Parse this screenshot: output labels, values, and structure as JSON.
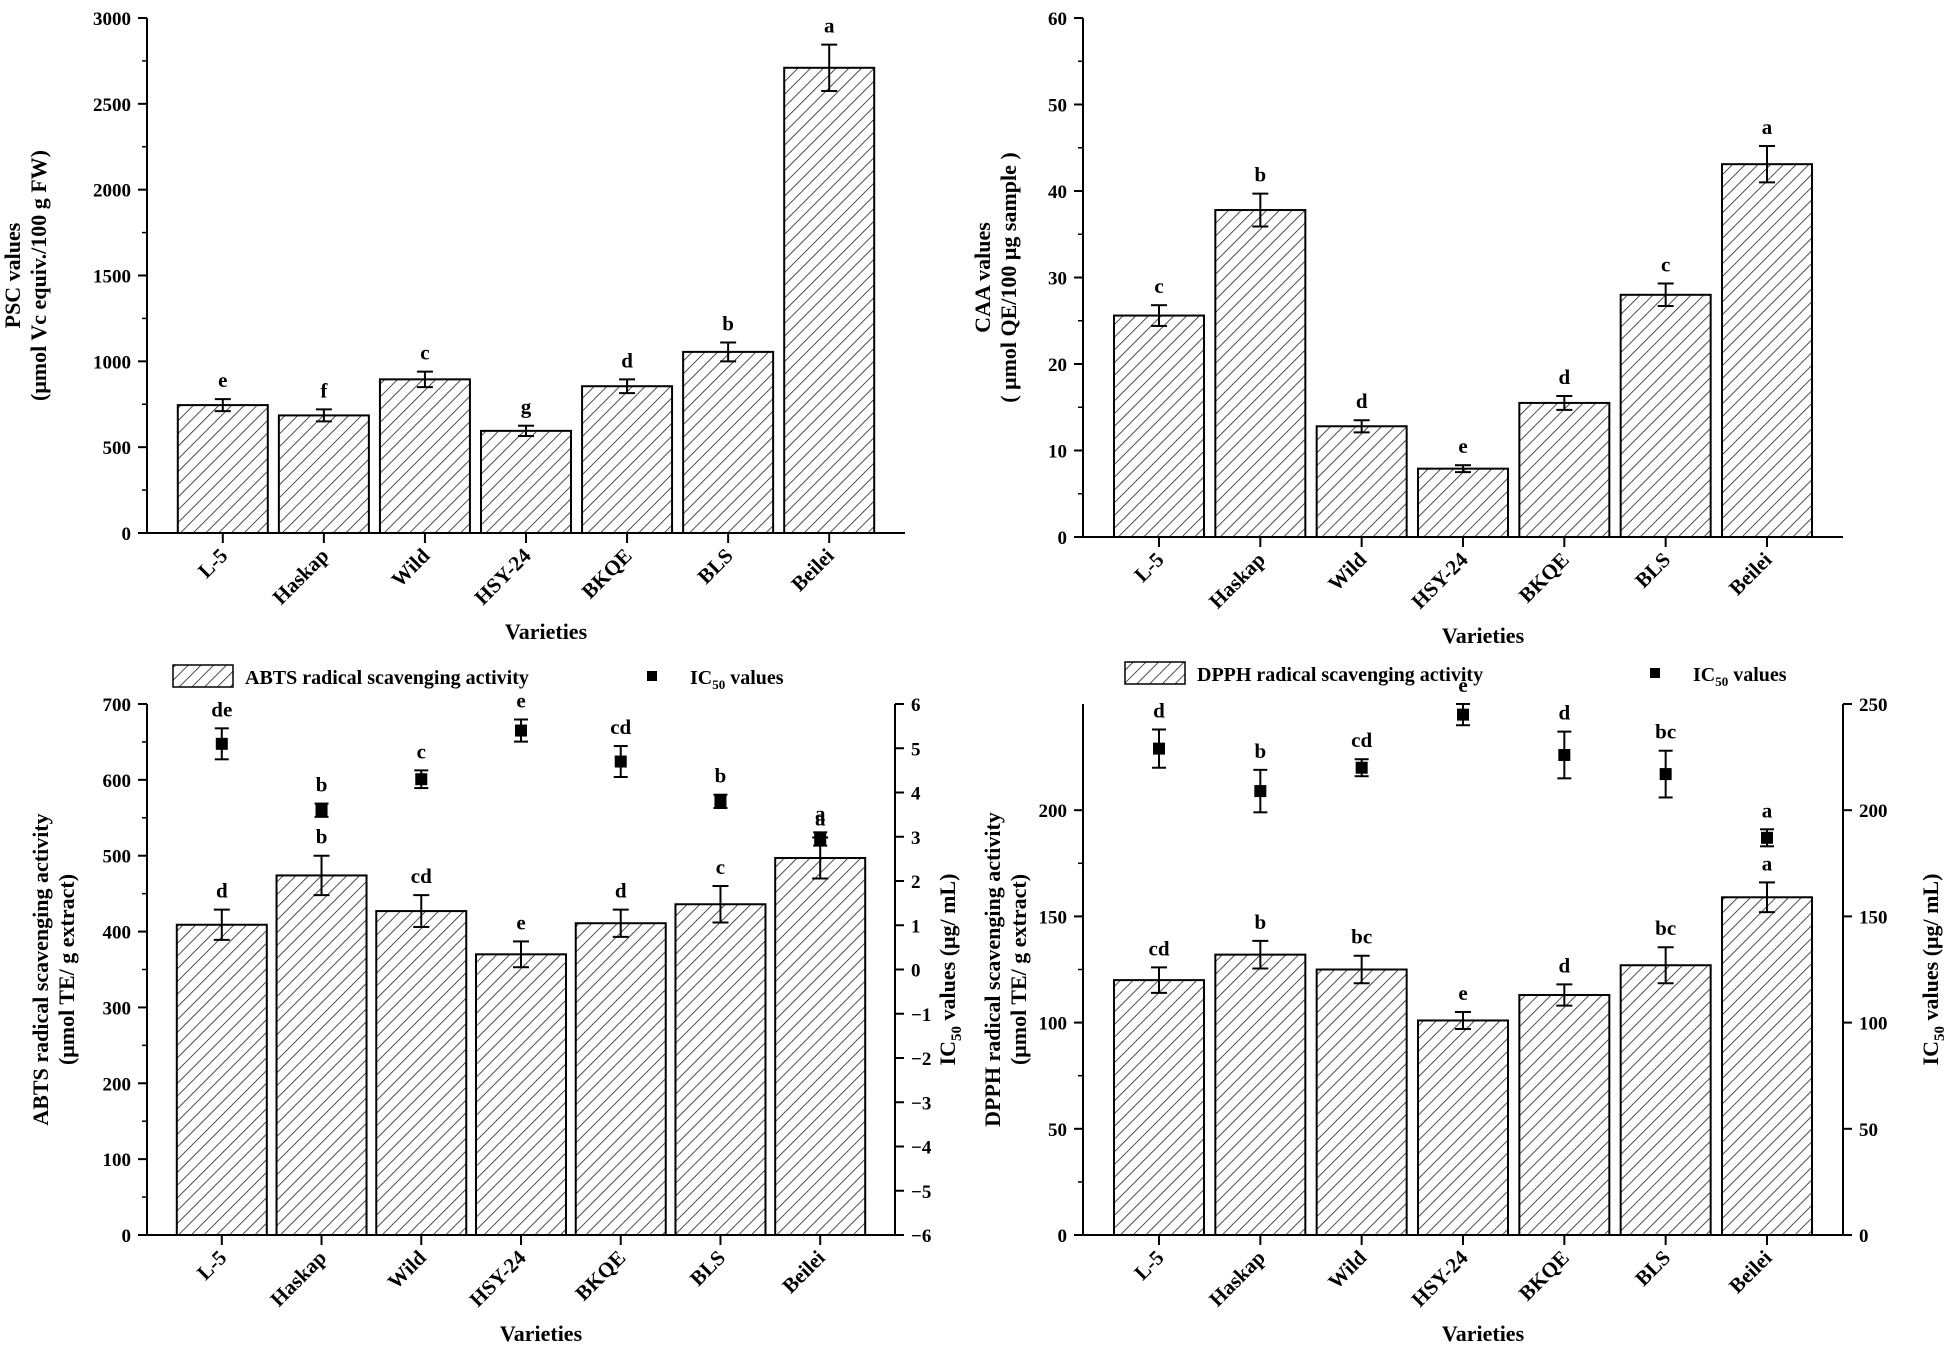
{
  "chart_data": [
    {
      "type": "bar",
      "id": "psc",
      "categories": [
        "L-5",
        "Haskap",
        "Wild",
        "HSY-24",
        "BKQE",
        "BLS",
        "Beilei"
      ],
      "values": [
        745,
        685,
        895,
        595,
        855,
        1055,
        2710
      ],
      "errors": [
        35,
        35,
        45,
        30,
        40,
        55,
        135
      ],
      "letters": [
        "e",
        "f",
        "c",
        "g",
        "d",
        "b",
        "a"
      ],
      "xlabel": "Varieties",
      "ylabel": [
        "PSC values",
        "(μmol Vc equiv./100 g FW)"
      ],
      "ylim": [
        0,
        3000
      ],
      "yticks": [
        0,
        500,
        1000,
        1500,
        2000,
        2500,
        3000
      ]
    },
    {
      "type": "bar",
      "id": "caa",
      "categories": [
        "L-5",
        "Haskap",
        "Wild",
        "HSY-24",
        "BKQE",
        "BLS",
        "Beilei"
      ],
      "values": [
        25.6,
        37.8,
        12.8,
        7.9,
        15.5,
        28.0,
        43.1
      ],
      "errors": [
        1.2,
        1.9,
        0.7,
        0.4,
        0.8,
        1.3,
        2.1
      ],
      "letters": [
        "c",
        "b",
        "d",
        "e",
        "d",
        "c",
        "a"
      ],
      "xlabel": "Varieties",
      "ylabel": [
        "CAA values",
        "( μmol QE/100 μg sample )"
      ],
      "ylim": [
        0,
        60
      ],
      "yticks": [
        0,
        10,
        20,
        30,
        40,
        50,
        60
      ]
    },
    {
      "type": "bar+scatter",
      "id": "abts",
      "categories": [
        "L-5",
        "Haskap",
        "Wild",
        "HSY-24",
        "BKQE",
        "BLS",
        "Beilei"
      ],
      "values": [
        409,
        474,
        427,
        370,
        411,
        436,
        497
      ],
      "errors": [
        20,
        26,
        21,
        17,
        18,
        24,
        27
      ],
      "letters": [
        "d",
        "b",
        "cd",
        "e",
        "d",
        "c",
        "a"
      ],
      "ic50": [
        5.1,
        3.6,
        4.3,
        5.4,
        4.7,
        3.8,
        2.95
      ],
      "ic50_errors": [
        0.35,
        0.15,
        0.2,
        0.25,
        0.35,
        0.15,
        0.15
      ],
      "ic50_letters": [
        "de",
        "b",
        "c",
        "e",
        "cd",
        "b",
        "a"
      ],
      "xlabel": "Varieties",
      "ylabel": [
        "ABTS radical scavenging activity",
        "(μmol TE/ g extract)"
      ],
      "ylim": [
        0,
        700
      ],
      "yticks": [
        0,
        100,
        200,
        300,
        400,
        500,
        600,
        700
      ],
      "y2label": "IC50 values (μg/ mL)",
      "y2lim": [
        -6,
        6
      ],
      "y2ticks": [
        -6,
        -5,
        -4,
        -3,
        -2,
        -1,
        0,
        1,
        2,
        3,
        4,
        5,
        6
      ],
      "legend": [
        "ABTS radical scavenging activity",
        "IC50 values"
      ]
    },
    {
      "type": "bar+scatter",
      "id": "dpph",
      "categories": [
        "L-5",
        "Haskap",
        "Wild",
        "HSY-24",
        "BKQE",
        "BLS",
        "Beilei"
      ],
      "values": [
        120,
        132,
        125,
        101,
        113,
        127,
        159
      ],
      "errors": [
        6,
        6.5,
        6.5,
        4,
        5,
        8.5,
        7
      ],
      "letters": [
        "cd",
        "b",
        "bc",
        "e",
        "d",
        "bc",
        "a"
      ],
      "ic50": [
        229,
        209,
        220,
        245,
        226,
        217,
        187
      ],
      "ic50_errors": [
        9,
        10,
        4,
        5,
        11,
        11,
        4
      ],
      "ic50_letters": [
        "d",
        "b",
        "cd",
        "e",
        "d",
        "bc",
        "a"
      ],
      "xlabel": "Varieties",
      "ylabel": [
        "DPPH radical scavenging activity",
        "(μmol TE/ g extract)"
      ],
      "ylim": [
        0,
        250
      ],
      "yticks": [
        0,
        50,
        100,
        150,
        200
      ],
      "y2label": "IC50 values (μg/ mL)",
      "y2lim": [
        0,
        250
      ],
      "y2ticks": [
        0,
        50,
        100,
        150,
        200,
        250
      ],
      "legend": [
        "DPPH radical scavenging activity",
        "IC50 values"
      ]
    }
  ]
}
